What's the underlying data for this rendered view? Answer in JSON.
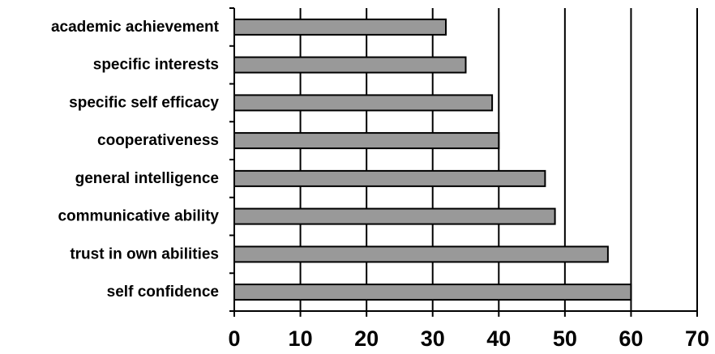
{
  "chart_data": {
    "type": "bar",
    "orientation": "horizontal",
    "title": "",
    "xlabel": "",
    "ylabel": "",
    "categories": [
      "academic achievement",
      "specific interests",
      "specific self efficacy",
      "cooperativeness",
      "general intelligence",
      "communicative ability",
      "trust in own abilities",
      "self confidence"
    ],
    "values": [
      32,
      35,
      39,
      40,
      47,
      48.5,
      56.5,
      60
    ],
    "xlim": [
      0,
      70
    ],
    "xticks": [
      0,
      10,
      20,
      30,
      40,
      50,
      60,
      70
    ],
    "xtick_labels": [
      "0",
      "10",
      "20",
      "30",
      "40",
      "50",
      "60",
      "70"
    ],
    "grid": "vertical",
    "legend": "none",
    "colors": {
      "bar_fill": "#999999",
      "bar_stroke": "#000000",
      "grid": "#000000"
    }
  }
}
